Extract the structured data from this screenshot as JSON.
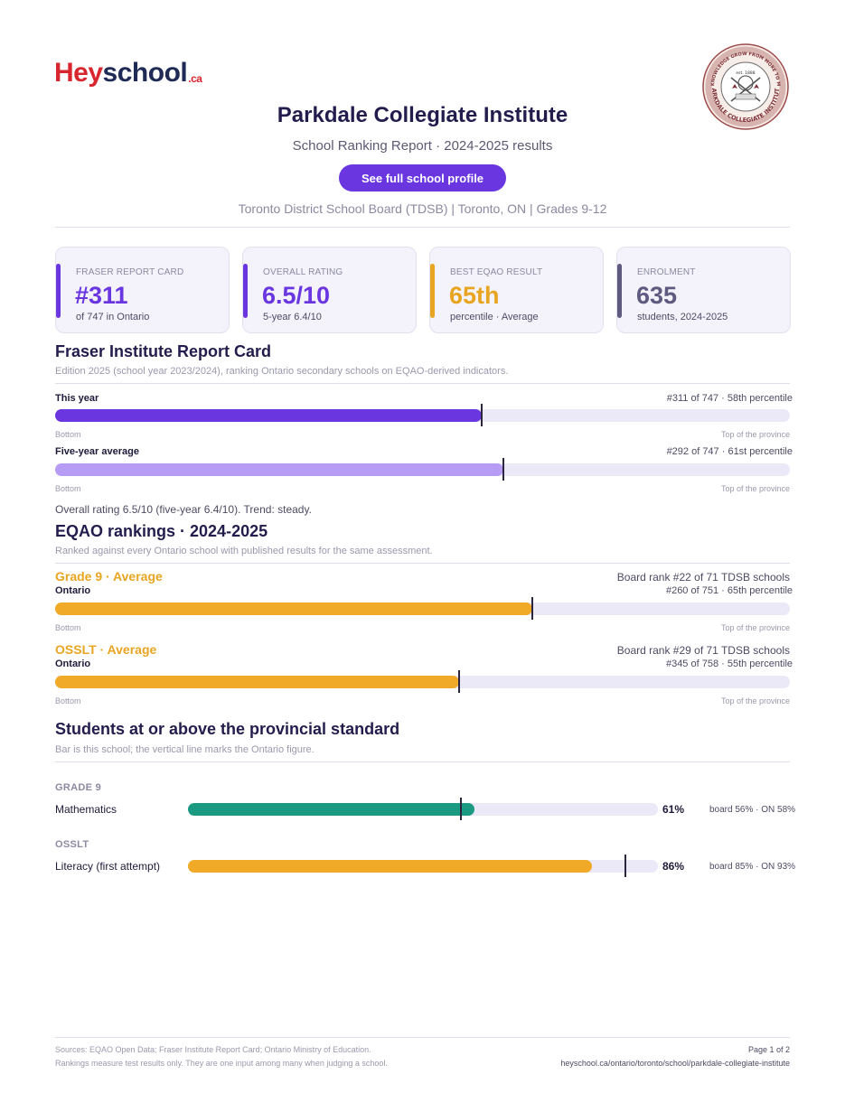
{
  "brand": {
    "logo_hey": "Hey",
    "logo_school": "school",
    "logo_tld": ".ca"
  },
  "seal": {
    "motto": "LET KNOWLEDGE GROW FROM MORE TO MORE",
    "established": "est. 1888",
    "name": "PARKDALE COLLEGIATE INSTITUTE"
  },
  "header": {
    "title": "Parkdale Collegiate Institute",
    "subtitle": "School Ranking Report  ·  2024-2025 results",
    "cta_label": "See full school profile",
    "meta": "Toronto District School Board (TDSB)  |  Toronto, ON  |  Grades 9-12"
  },
  "stats": [
    {
      "label": "FRASER REPORT CARD",
      "value": "#311",
      "sub": "of 747 in Ontario",
      "color": "#6a36e0"
    },
    {
      "label": "OVERALL RATING",
      "value": "6.5/10",
      "sub": "5-year 6.4/10",
      "color": "#6a36e0"
    },
    {
      "label": "BEST EQAO RESULT",
      "value": "65th",
      "sub": "percentile  ·  Average",
      "color": "#e8a521"
    },
    {
      "label": "ENROLMENT",
      "value": "635",
      "sub": "students, 2024-2025",
      "color": "#5f5a80"
    }
  ],
  "fraser": {
    "heading": "Fraser Institute Report Card",
    "description": "Edition 2025 (school year 2023/2024), ranking Ontario secondary schools on EQAO-derived indicators.",
    "edge_left": "Bottom",
    "edge_right": "Top of the province",
    "rows": [
      {
        "label": "This year",
        "rank": "#311 of 747  ·  58th percentile",
        "percentile": 58,
        "color": "#6a36e0"
      },
      {
        "label": "Five-year average",
        "rank": "#292 of 747  ·  61st percentile",
        "percentile": 61,
        "color": "#b79cf5"
      }
    ],
    "note": "Overall rating 6.5/10 (five-year 6.4/10). Trend: steady."
  },
  "eqao": {
    "heading": "EQAO rankings  ·  2024-2025",
    "description": "Ranked against every Ontario school with published results for the same assessment.",
    "edge_left": "Bottom",
    "edge_right": "Top of the province",
    "rows": [
      {
        "title": "Grade 9  ·  Average",
        "board_rank": "Board rank #22 of 71 TDSB schools",
        "scope": "Ontario",
        "rank": "#260 of 751  ·  65th percentile",
        "percentile": 65
      },
      {
        "title": "OSSLT  ·  Average",
        "board_rank": "Board rank #29 of 71 TDSB schools",
        "scope": "Ontario",
        "rank": "#345 of 758  ·  55th percentile",
        "percentile": 55
      }
    ]
  },
  "standard": {
    "heading": "Students at or above the provincial standard",
    "description": "Bar is this school; the vertical line marks the Ontario figure.",
    "groups": [
      {
        "group": "GRADE 9",
        "subject": "Mathematics",
        "school_pct": 61,
        "ontario_pct": 58,
        "pct_label": "61%",
        "compare": "board 56%  ·  ON 58%",
        "color": "#1a9a80"
      },
      {
        "group": "OSSLT",
        "subject": "Literacy (first attempt)",
        "school_pct": 86,
        "ontario_pct": 93,
        "pct_label": "86%",
        "compare": "board 85%  ·  ON 93%",
        "color": "#f0aa27"
      }
    ]
  },
  "footer": {
    "sources": "Sources: EQAO Open Data; Fraser Institute Report Card; Ontario Ministry of Education.",
    "disclaimer": "Rankings measure test results only. They are one input among many when judging a school.",
    "page": "Page 1 of 2",
    "url": "heyschool.ca/ontario/toronto/school/parkdale-collegiate-institute"
  }
}
